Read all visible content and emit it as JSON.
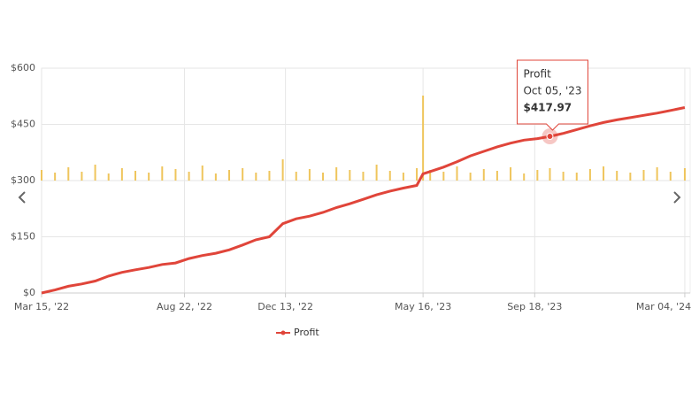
{
  "chart_data": {
    "type": "line",
    "x": [
      "2022-03-15",
      "2022-03-30",
      "2022-04-14",
      "2022-04-29",
      "2022-05-14",
      "2022-05-29",
      "2022-06-13",
      "2022-06-28",
      "2022-07-13",
      "2022-07-28",
      "2022-08-12",
      "2022-08-27",
      "2022-09-11",
      "2022-09-26",
      "2022-10-11",
      "2022-10-26",
      "2022-11-10",
      "2022-11-25",
      "2022-12-10",
      "2022-12-25",
      "2023-01-09",
      "2023-01-24",
      "2023-02-08",
      "2023-02-23",
      "2023-03-10",
      "2023-03-25",
      "2023-04-09",
      "2023-04-24",
      "2023-05-09",
      "2023-05-16",
      "2023-05-24",
      "2023-06-08",
      "2023-06-23",
      "2023-07-08",
      "2023-07-23",
      "2023-08-07",
      "2023-08-22",
      "2023-09-06",
      "2023-09-21",
      "2023-10-05",
      "2023-10-20",
      "2023-11-04",
      "2023-11-19",
      "2023-12-04",
      "2023-12-19",
      "2024-01-03",
      "2024-01-18",
      "2024-02-02",
      "2024-02-17",
      "2024-03-04"
    ],
    "series": [
      {
        "name": "Profit",
        "color": "#e0453a",
        "values": [
          0,
          8,
          18,
          24,
          32,
          45,
          55,
          62,
          68,
          76,
          80,
          92,
          100,
          106,
          115,
          128,
          142,
          150,
          185,
          198,
          205,
          215,
          228,
          238,
          250,
          262,
          272,
          280,
          287,
          318,
          324,
          336,
          350,
          366,
          378,
          390,
          400,
          408,
          412,
          417.97,
          426,
          436,
          446,
          455,
          462,
          468,
          474,
          480,
          487,
          495
        ],
        "value_labels": [
          null,
          null,
          null,
          null,
          null,
          null,
          null,
          null,
          null,
          null,
          null,
          null,
          null,
          null,
          null,
          null,
          null,
          null,
          null,
          null,
          null,
          null,
          null,
          null,
          null,
          null,
          null,
          null,
          null,
          null,
          null,
          null,
          null,
          null,
          null,
          null,
          null,
          null,
          null,
          "$417.97",
          null,
          null,
          null,
          null,
          null,
          null,
          null,
          null,
          null,
          null
        ]
      },
      {
        "color": "#efc55c",
        "axis": "y2",
        "type": "bar",
        "values": [
          12,
          9,
          15,
          10,
          18,
          8,
          14,
          11,
          9,
          16,
          13,
          10,
          17,
          8,
          12,
          14,
          9,
          11,
          24,
          10,
          13,
          9,
          15,
          12,
          10,
          18,
          11,
          9,
          14,
          96,
          12,
          10,
          16,
          9,
          13,
          11,
          15,
          8,
          12,
          14,
          10,
          9,
          13,
          16,
          11,
          9,
          12,
          15,
          10,
          14
        ]
      }
    ],
    "ylim": [
      0,
      600
    ],
    "yticks": [
      {
        "value": 0,
        "label": "$0"
      },
      {
        "value": 150,
        "label": "$150"
      },
      {
        "value": 300,
        "label": "$300"
      },
      {
        "value": 450,
        "label": "$450"
      },
      {
        "value": 600,
        "label": "$600"
      }
    ],
    "y2lim": [
      0,
      127
    ],
    "xlim": [
      "2022-03-15",
      "2024-03-10"
    ],
    "xticks": [
      {
        "value": "2022-03-15",
        "label": "Mar 15, '22"
      },
      {
        "value": "2022-08-22",
        "label": "Aug 22, '22"
      },
      {
        "value": "2022-12-13",
        "label": "Dec 13, '22"
      },
      {
        "value": "2023-05-16",
        "label": "May 16, '23"
      },
      {
        "value": "2023-09-18",
        "label": "Sep 18, '23"
      },
      {
        "value": "2024-03-04",
        "label": "Mar 04, '24"
      }
    ],
    "grid": true,
    "legend": "bottom",
    "tooltip": {
      "x_label": "Oct 05, '23"
    }
  }
}
